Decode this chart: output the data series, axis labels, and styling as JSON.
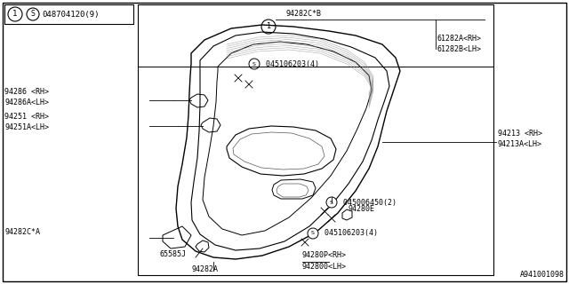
{
  "bg_color": "#ffffff",
  "catalog_number": "A941001098",
  "header_num": "1",
  "header_screw": "S",
  "header_part": "048704120(9)",
  "fig_width": 6.4,
  "fig_height": 3.2,
  "dpi": 100
}
